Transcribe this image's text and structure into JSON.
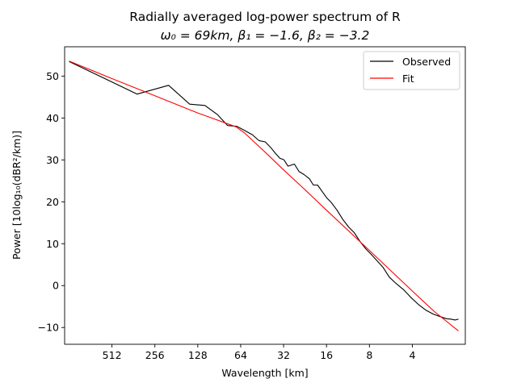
{
  "chart_data": {
    "type": "line",
    "title_line1": "Radially averaged log-power spectrum of R",
    "title_line2": "ω₀ = 69km, β₁ = −1.6, β₂ = −3.2",
    "xlabel": "Wavelength [km]",
    "ylabel": "Power [10log₁₀(dBR²/km)]",
    "x_scale": "log",
    "x_reversed": true,
    "xlim": [
      1100,
      1.7
    ],
    "ylim": [
      -14,
      57
    ],
    "x_ticks": [
      512,
      256,
      128,
      64,
      32,
      16,
      8,
      4
    ],
    "x_tick_labels": [
      "512",
      "256",
      "128",
      "64",
      "32",
      "16",
      "8",
      "4"
    ],
    "y_ticks": [
      -10,
      0,
      10,
      20,
      30,
      40,
      50
    ],
    "y_tick_labels": [
      "−10",
      "0",
      "10",
      "20",
      "30",
      "40",
      "50"
    ],
    "legend_position": "top-right",
    "series": [
      {
        "name": "Observed",
        "color": "#000000",
        "x": [
          1024,
          341,
          205,
          146,
          114,
          93,
          79,
          68,
          60,
          53,
          47.6,
          43,
          39.5,
          36.6,
          34,
          31.8,
          29.8,
          26.9,
          24.9,
          23,
          21.1,
          19.8,
          18.5,
          17.2,
          16,
          14.8,
          13.5,
          12.3,
          11.2,
          10.2,
          9.3,
          8.5,
          7.8,
          7.1,
          6.4,
          5.8,
          5.2,
          4.6,
          4.1,
          3.6,
          3.2,
          2.85,
          2.55,
          2.3,
          2.15,
          2.0,
          1.9
        ],
        "values": [
          53.5,
          45.7,
          47.8,
          43.3,
          43.0,
          40.8,
          38.2,
          38.0,
          37.0,
          36.0,
          34.6,
          34.3,
          33.0,
          31.6,
          30.4,
          30.0,
          28.5,
          29.0,
          27.2,
          26.5,
          25.5,
          24.0,
          24.0,
          22.5,
          21.0,
          19.8,
          18.0,
          15.8,
          14.0,
          12.6,
          10.5,
          8.8,
          7.5,
          6.0,
          4.3,
          2.0,
          0.5,
          -1.0,
          -2.8,
          -4.6,
          -5.9,
          -6.8,
          -7.4,
          -7.9,
          -8.0,
          -8.2,
          -8.0
        ]
      },
      {
        "name": "Fit",
        "color": "#ff0000",
        "x": [
          1024,
          512,
          256,
          128,
          69,
          60,
          50,
          40,
          32,
          24,
          16,
          8,
          4,
          2.8,
          1.9
        ],
        "values": [
          53.6,
          49.4,
          45.3,
          41.2,
          37.9,
          36.4,
          33.9,
          30.8,
          27.6,
          23.7,
          18.0,
          8.4,
          -1.3,
          -6.2,
          -10.8
        ]
      }
    ]
  }
}
